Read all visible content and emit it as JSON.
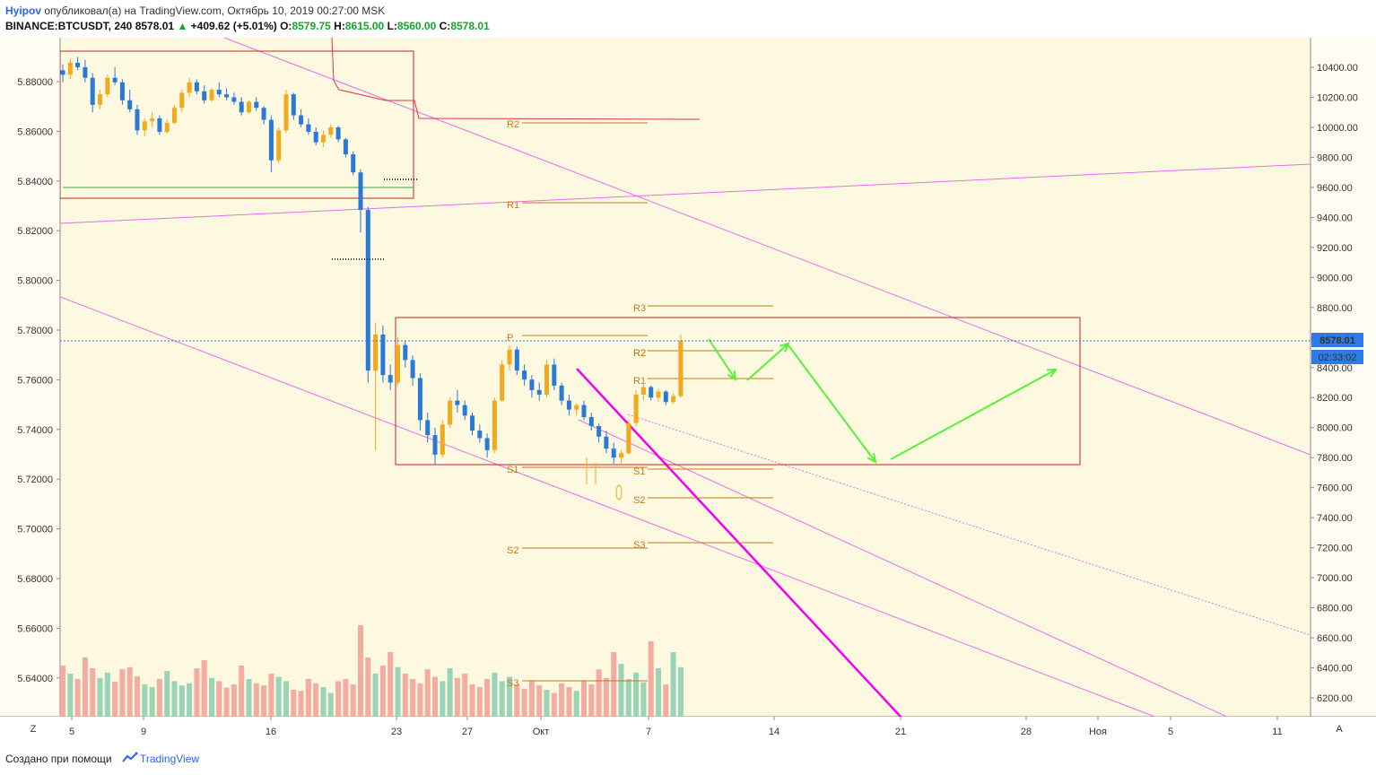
{
  "header": {
    "author": "Hyipov",
    "published_text": "опубликовал(а) на TradingView.com, Октябрь 10, 2019 00:27:00 MSK",
    "symbol": "BINANCE:BTCUSDT, 240",
    "last": "8578.01",
    "change": "+409.62 (+5.01%)",
    "open_label": "O:",
    "open": "8579.75",
    "high_label": "H:",
    "high": "8615.00",
    "low_label": "L:",
    "low": "8560.00",
    "close_label": "C:",
    "close": "8578.01"
  },
  "price_badge": "8578.01",
  "timer_badge": "02:33:02",
  "axis_buttons": {
    "zoom": "Z",
    "auto": "A"
  },
  "footer": {
    "created_with": "Создано при помощи",
    "brand": "TradingView"
  },
  "colors": {
    "background": "#fdf8e0",
    "bull": "#f2a91e",
    "bear": "#2979d8",
    "vol_up": "#8fcfb4",
    "vol_down": "#f3a39a",
    "pivot": "#c77a1a",
    "trend": "#e86fe8",
    "trend_bold": "#f200f2",
    "box": "#cc2222",
    "arrow": "#59f03a",
    "badge": "#2e7ae6"
  },
  "chart_data": {
    "type": "candlestick",
    "left_axis": {
      "ticks": [
        "5.88000",
        "5.86000",
        "5.84000",
        "5.82000",
        "5.80000",
        "5.78000",
        "5.76000",
        "5.74000",
        "5.72000",
        "5.70000",
        "5.68000",
        "5.66000",
        "5.64000"
      ]
    },
    "right_axis": {
      "ticks": [
        "10400.00",
        "10200.00",
        "10000.00",
        "9800.00",
        "9600.00",
        "9400.00",
        "9200.00",
        "9000.00",
        "8800.00",
        "8600.00",
        "8400.00",
        "8200.00",
        "8000.00",
        "7800.00",
        "7600.00",
        "7400.00",
        "7200.00",
        "7000.00",
        "6800.00",
        "6600.00",
        "6400.00",
        "6200.00"
      ],
      "ylim": [
        6100,
        10500
      ]
    },
    "x_axis": {
      "ticks": [
        "5",
        "9",
        "16",
        "23",
        "27",
        "Окт",
        "7",
        "14",
        "21",
        "28",
        "Ноя",
        "5",
        "11"
      ]
    },
    "last_price": 8578.01,
    "pivot_levels": [
      {
        "label": "R2",
        "value": 9960
      },
      {
        "label": "R1",
        "value": 9500
      },
      {
        "label": "P",
        "value": 8615
      },
      {
        "label": "R2",
        "value": 8510
      },
      {
        "label": "S1",
        "value": 7730
      },
      {
        "label": "S2",
        "value": 7180
      },
      {
        "label": "S3",
        "value": 6300
      },
      {
        "label": "R3",
        "value": 8800
      },
      {
        "label": "R2",
        "value": 8505
      },
      {
        "label": "R1",
        "value": 8320
      },
      {
        "label": "S1",
        "value": 7720
      },
      {
        "label": "S2",
        "value": 7420
      },
      {
        "label": "S3",
        "value": 7120
      }
    ],
    "ohlc": [
      [
        10380,
        10420,
        10300,
        10350
      ],
      [
        10350,
        10460,
        10320,
        10430
      ],
      [
        10430,
        10470,
        10380,
        10400
      ],
      [
        10400,
        10450,
        10300,
        10330
      ],
      [
        10330,
        10360,
        10100,
        10150
      ],
      [
        10150,
        10250,
        10120,
        10220
      ],
      [
        10220,
        10350,
        10200,
        10330
      ],
      [
        10330,
        10400,
        10280,
        10300
      ],
      [
        10300,
        10320,
        10150,
        10180
      ],
      [
        10180,
        10250,
        10100,
        10120
      ],
      [
        10120,
        10150,
        9950,
        9980
      ],
      [
        9980,
        10060,
        9940,
        10040
      ],
      [
        10040,
        10100,
        10000,
        10060
      ],
      [
        10060,
        10080,
        9950,
        9970
      ],
      [
        9970,
        10050,
        9960,
        10030
      ],
      [
        10030,
        10150,
        10020,
        10130
      ],
      [
        10130,
        10250,
        10100,
        10230
      ],
      [
        10230,
        10330,
        10200,
        10300
      ],
      [
        10300,
        10320,
        10220,
        10240
      ],
      [
        10240,
        10280,
        10160,
        10180
      ],
      [
        10180,
        10260,
        10170,
        10250
      ],
      [
        10250,
        10300,
        10200,
        10220
      ],
      [
        10220,
        10260,
        10180,
        10200
      ],
      [
        10200,
        10230,
        10150,
        10170
      ],
      [
        10170,
        10200,
        10080,
        10100
      ],
      [
        10100,
        10180,
        10090,
        10170
      ],
      [
        10170,
        10200,
        10110,
        10130
      ],
      [
        10130,
        10140,
        10020,
        10050
      ],
      [
        10050,
        10080,
        9700,
        9780
      ],
      [
        9780,
        10000,
        9760,
        9980
      ],
      [
        9980,
        10250,
        9960,
        10220
      ],
      [
        10220,
        10230,
        10050,
        10080
      ],
      [
        10080,
        10120,
        10000,
        10020
      ],
      [
        10020,
        10060,
        9950,
        9970
      ],
      [
        9970,
        10000,
        9880,
        9900
      ],
      [
        9900,
        9980,
        9870,
        9950
      ],
      [
        9950,
        10020,
        9930,
        10000
      ],
      [
        10000,
        10010,
        9900,
        9920
      ],
      [
        9920,
        9930,
        9800,
        9820
      ],
      [
        9820,
        9840,
        9680,
        9700
      ],
      [
        9700,
        9720,
        9300,
        9450
      ],
      [
        9450,
        9470,
        8300,
        8380
      ],
      [
        8380,
        8700,
        7850,
        8620
      ],
      [
        8620,
        8680,
        8300,
        8350
      ],
      [
        8350,
        8420,
        8250,
        8300
      ],
      [
        8300,
        8600,
        8280,
        8550
      ],
      [
        8550,
        8580,
        8400,
        8450
      ],
      [
        8450,
        8480,
        8280,
        8330
      ],
      [
        8330,
        8360,
        7980,
        8050
      ],
      [
        8050,
        8100,
        7900,
        7950
      ],
      [
        7950,
        8000,
        7750,
        7820
      ],
      [
        7820,
        8050,
        7800,
        8020
      ],
      [
        8020,
        8200,
        8000,
        8180
      ],
      [
        8180,
        8250,
        8100,
        8150
      ],
      [
        8150,
        8180,
        8050,
        8080
      ],
      [
        8080,
        8100,
        7950,
        7980
      ],
      [
        7980,
        8020,
        7900,
        7930
      ],
      [
        7930,
        7960,
        7800,
        7850
      ],
      [
        7850,
        8200,
        7830,
        8180
      ],
      [
        8180,
        8450,
        8170,
        8420
      ],
      [
        8420,
        8550,
        8380,
        8520
      ],
      [
        8520,
        8540,
        8350,
        8380
      ],
      [
        8380,
        8420,
        8280,
        8320
      ],
      [
        8320,
        8350,
        8200,
        8250
      ],
      [
        8250,
        8300,
        8180,
        8220
      ],
      [
        8220,
        8450,
        8200,
        8420
      ],
      [
        8420,
        8460,
        8250,
        8280
      ],
      [
        8280,
        8300,
        8150,
        8180
      ],
      [
        8180,
        8220,
        8080,
        8120
      ],
      [
        8120,
        8160,
        8080,
        8150
      ],
      [
        8150,
        8180,
        8050,
        8070
      ],
      [
        8070,
        8100,
        7980,
        8010
      ],
      [
        8010,
        8030,
        7900,
        7940
      ],
      [
        7940,
        7980,
        7830,
        7860
      ],
      [
        7860,
        7900,
        7760,
        7800
      ],
      [
        7800,
        7850,
        7760,
        7830
      ],
      [
        7830,
        8050,
        7820,
        8030
      ],
      [
        8030,
        8250,
        8010,
        8220
      ],
      [
        8220,
        8300,
        8180,
        8270
      ],
      [
        8270,
        8280,
        8180,
        8200
      ],
      [
        8200,
        8260,
        8170,
        8240
      ],
      [
        8240,
        8250,
        8150,
        8170
      ],
      [
        8170,
        8230,
        8160,
        8210
      ],
      [
        8210,
        8620,
        8200,
        8578
      ]
    ],
    "volume": [
      95,
      80,
      70,
      110,
      90,
      72,
      82,
      65,
      88,
      92,
      75,
      60,
      55,
      70,
      85,
      66,
      58,
      62,
      90,
      105,
      72,
      66,
      54,
      60,
      95,
      70,
      62,
      58,
      80,
      74,
      66,
      50,
      48,
      70,
      62,
      55,
      44,
      66,
      70,
      60,
      170,
      110,
      80,
      95,
      120,
      92,
      80,
      70,
      62,
      88,
      74,
      66,
      90,
      72,
      80,
      60,
      55,
      70,
      82,
      66,
      74,
      60,
      52,
      66,
      58,
      50,
      44,
      62,
      55,
      48,
      66,
      60,
      88,
      72,
      120,
      98,
      70,
      82,
      64,
      140,
      90,
      60,
      120,
      92
    ],
    "annotations": [
      {
        "type": "rectangle",
        "x_range": [
          "5",
          "23"
        ],
        "y_range": [
          9600,
          10400
        ]
      },
      {
        "type": "rectangle",
        "x_range": [
          "23",
          "28"
        ],
        "y_range": [
          7750,
          8740
        ]
      },
      {
        "type": "trend_line"
      },
      {
        "type": "arrow_path"
      }
    ]
  }
}
